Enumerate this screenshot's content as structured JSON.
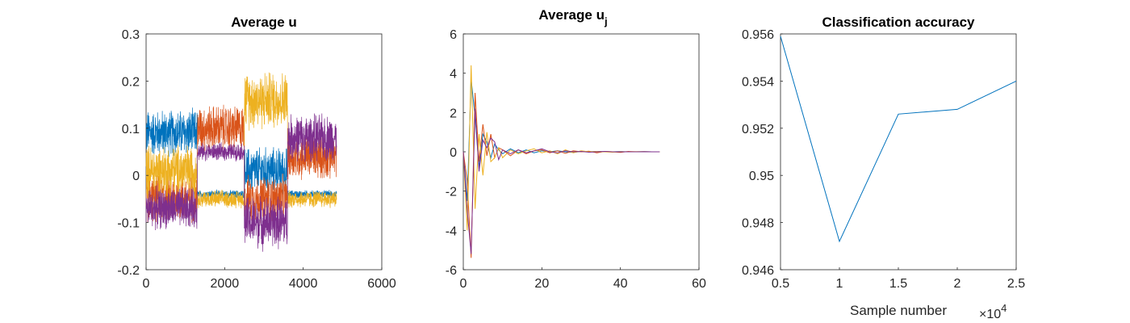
{
  "colors": {
    "blue": "#0072BD",
    "orange": "#D95319",
    "yellow": "#EDB120",
    "purple": "#7E2F8E",
    "axis": "#262626"
  },
  "chart_data": [
    {
      "type": "line",
      "title": "Average u",
      "xlabel": "",
      "ylabel": "",
      "xlim": [
        0,
        6000
      ],
      "ylim": [
        -0.2,
        0.3
      ],
      "xticks": [
        "0",
        "2000",
        "4000",
        "6000"
      ],
      "yticks": [
        "-0.2",
        "-0.1",
        "0",
        "0.1",
        "0.2",
        "0.3"
      ],
      "noisy": true,
      "series": [
        {
          "color_key": "blue",
          "segments": [
            {
              "x0": 0,
              "x1": 1300,
              "mean": 0.09,
              "amp": 0.04
            },
            {
              "x0": 1300,
              "x1": 2500,
              "mean": -0.04,
              "amp": 0.007
            },
            {
              "x0": 2500,
              "x1": 3600,
              "mean": 0.01,
              "amp": 0.04
            },
            {
              "x0": 3600,
              "x1": 4850,
              "mean": -0.04,
              "amp": 0.007
            }
          ]
        },
        {
          "color_key": "orange",
          "segments": [
            {
              "x0": 0,
              "x1": 1300,
              "mean": -0.05,
              "amp": 0.04
            },
            {
              "x0": 1300,
              "x1": 2500,
              "mean": 0.1,
              "amp": 0.04
            },
            {
              "x0": 2500,
              "x1": 3600,
              "mean": -0.05,
              "amp": 0.04
            },
            {
              "x0": 3600,
              "x1": 4850,
              "mean": 0.04,
              "amp": 0.04
            }
          ]
        },
        {
          "color_key": "yellow",
          "segments": [
            {
              "x0": 0,
              "x1": 1300,
              "mean": 0.01,
              "amp": 0.045
            },
            {
              "x0": 1300,
              "x1": 2500,
              "mean": -0.05,
              "amp": 0.015
            },
            {
              "x0": 2500,
              "x1": 3600,
              "mean": 0.16,
              "amp": 0.05
            },
            {
              "x0": 3600,
              "x1": 4850,
              "mean": -0.05,
              "amp": 0.015
            }
          ]
        },
        {
          "color_key": "purple",
          "segments": [
            {
              "x0": 0,
              "x1": 1300,
              "mean": -0.07,
              "amp": 0.035
            },
            {
              "x0": 1300,
              "x1": 2500,
              "mean": 0.05,
              "amp": 0.015
            },
            {
              "x0": 2500,
              "x1": 3600,
              "mean": -0.1,
              "amp": 0.045
            },
            {
              "x0": 3600,
              "x1": 4850,
              "mean": 0.08,
              "amp": 0.04
            }
          ]
        }
      ]
    },
    {
      "type": "line",
      "title": "Average u",
      "title_sub": "j",
      "xlabel": "",
      "ylabel": "",
      "xlim": [
        0,
        60
      ],
      "ylim": [
        -6,
        6
      ],
      "xticks": [
        "0",
        "20",
        "40",
        "60"
      ],
      "yticks": [
        "-6",
        "-4",
        "-2",
        "0",
        "2",
        "4",
        "6"
      ],
      "series": [
        {
          "color_key": "blue",
          "x": [
            0,
            1,
            2,
            3,
            4,
            5,
            6,
            7,
            8,
            9,
            10,
            12,
            14,
            16,
            18,
            20,
            22,
            24,
            26,
            28,
            30,
            32,
            34,
            36,
            38,
            40,
            42,
            44,
            46,
            48,
            50
          ],
          "y": [
            0,
            -2.5,
            3.7,
            1.8,
            -0.8,
            0.9,
            0.5,
            -0.3,
            0.4,
            0.1,
            -0.1,
            0.15,
            -0.05,
            0.1,
            -0.05,
            0.05,
            0,
            0.05,
            0,
            -0.03,
            0.02,
            0,
            0.02,
            0,
            0,
            0.01,
            0,
            0,
            0.01,
            0,
            0
          ]
        },
        {
          "color_key": "orange",
          "x": [
            0,
            1,
            2,
            3,
            4,
            5,
            6,
            7,
            8,
            9,
            10,
            12,
            14,
            16,
            18,
            20,
            22,
            24,
            26,
            28,
            30,
            32,
            34,
            36,
            38,
            40,
            42,
            44,
            46,
            48,
            50
          ],
          "y": [
            0,
            -1.5,
            -5.4,
            3.0,
            -0.5,
            1.4,
            -0.2,
            0.9,
            -0.3,
            0.2,
            0.1,
            -0.2,
            0.1,
            -0.1,
            0.05,
            0.1,
            -0.05,
            0.05,
            -0.08,
            0.05,
            0,
            0.03,
            -0.05,
            0.02,
            0,
            -0.03,
            0.02,
            0,
            0.01,
            0,
            0
          ]
        },
        {
          "color_key": "yellow",
          "x": [
            0,
            1,
            2,
            3,
            4,
            5,
            6,
            7,
            8,
            9,
            10,
            12,
            14,
            16,
            18,
            20,
            22,
            24,
            26,
            28,
            30,
            32,
            34,
            36,
            38,
            40,
            42,
            44,
            46,
            48,
            50
          ],
          "y": [
            0,
            -4.0,
            4.4,
            -2.9,
            0.9,
            -1.2,
            1.0,
            -0.5,
            -0.3,
            0.2,
            -0.3,
            0.1,
            -0.1,
            0.05,
            0.15,
            -0.05,
            0.05,
            -0.1,
            0.1,
            -0.05,
            0.05,
            0,
            0.02,
            0,
            -0.02,
            0.01,
            0,
            0.01,
            0,
            0,
            0
          ]
        },
        {
          "color_key": "purple",
          "x": [
            0,
            1,
            2,
            3,
            4,
            5,
            6,
            7,
            8,
            9,
            10,
            12,
            14,
            16,
            18,
            20,
            22,
            24,
            26,
            28,
            30,
            32,
            34,
            36,
            38,
            40,
            42,
            44,
            46,
            48,
            50
          ],
          "y": [
            0,
            -3.0,
            -5.2,
            2.2,
            -1.0,
            0.6,
            0.2,
            0.7,
            0.5,
            -0.4,
            0.1,
            -0.1,
            0.1,
            -0.05,
            0.05,
            0.15,
            0,
            -0.05,
            0.05,
            0,
            0.02,
            -0.02,
            0,
            0.02,
            0,
            0,
            0,
            0,
            0,
            0,
            0
          ]
        }
      ]
    },
    {
      "type": "line",
      "title": "Classification accuracy",
      "xlabel": "Sample number",
      "x_exponent_base": "×10",
      "x_exponent_power": "4",
      "ylabel": "",
      "xlim": [
        0.5,
        2.5
      ],
      "ylim": [
        0.946,
        0.956
      ],
      "xticks": [
        "0.5",
        "1",
        "1.5",
        "2",
        "2.5"
      ],
      "yticks": [
        "0.946",
        "0.948",
        "0.95",
        "0.952",
        "0.954",
        "0.956"
      ],
      "series": [
        {
          "color_key": "blue",
          "x": [
            0.5,
            1,
            1.5,
            2,
            2.5
          ],
          "y": [
            0.9559,
            0.9472,
            0.9526,
            0.9528,
            0.954
          ]
        }
      ]
    }
  ]
}
